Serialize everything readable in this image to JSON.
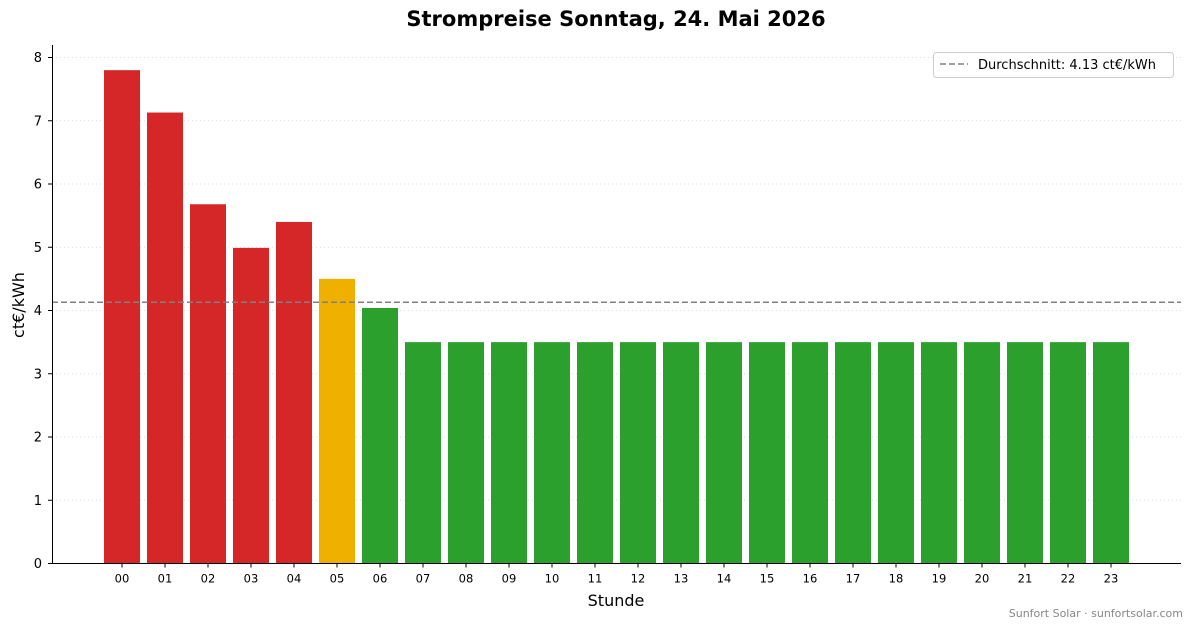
{
  "chart_data": {
    "type": "bar",
    "title": "Strompreise Sonntag, 24. Mai 2026",
    "xlabel": "Stunde",
    "ylabel": "ct€/kWh",
    "ylim": [
      0,
      8.2
    ],
    "yticks": [
      "0",
      "1",
      "2",
      "3",
      "4",
      "5",
      "6",
      "7",
      "8"
    ],
    "categories": [
      "00",
      "01",
      "02",
      "03",
      "04",
      "05",
      "06",
      "07",
      "08",
      "09",
      "10",
      "11",
      "12",
      "13",
      "14",
      "15",
      "16",
      "17",
      "18",
      "19",
      "20",
      "21",
      "22",
      "23"
    ],
    "values": [
      7.8,
      7.13,
      5.68,
      4.99,
      5.4,
      4.5,
      4.04,
      3.5,
      3.5,
      3.5,
      3.5,
      3.5,
      3.5,
      3.5,
      3.5,
      3.5,
      3.5,
      3.5,
      3.5,
      3.5,
      3.5,
      3.5,
      3.5,
      3.5
    ],
    "bar_colors": [
      "#d62728",
      "#d62728",
      "#d62728",
      "#d62728",
      "#d62728",
      "#f0b000",
      "#2ca02c",
      "#2ca02c",
      "#2ca02c",
      "#2ca02c",
      "#2ca02c",
      "#2ca02c",
      "#2ca02c",
      "#2ca02c",
      "#2ca02c",
      "#2ca02c",
      "#2ca02c",
      "#2ca02c",
      "#2ca02c",
      "#2ca02c",
      "#2ca02c",
      "#2ca02c",
      "#2ca02c",
      "#2ca02c"
    ],
    "average": 4.13,
    "average_color": "#808080",
    "legend": {
      "label": "Durchschnitt: 4.13 ct€/kWh",
      "position": "top-right"
    },
    "grid": {
      "y": true,
      "style": "dotted"
    },
    "footer": "Sunfort Solar · sunfortsolar.com"
  }
}
